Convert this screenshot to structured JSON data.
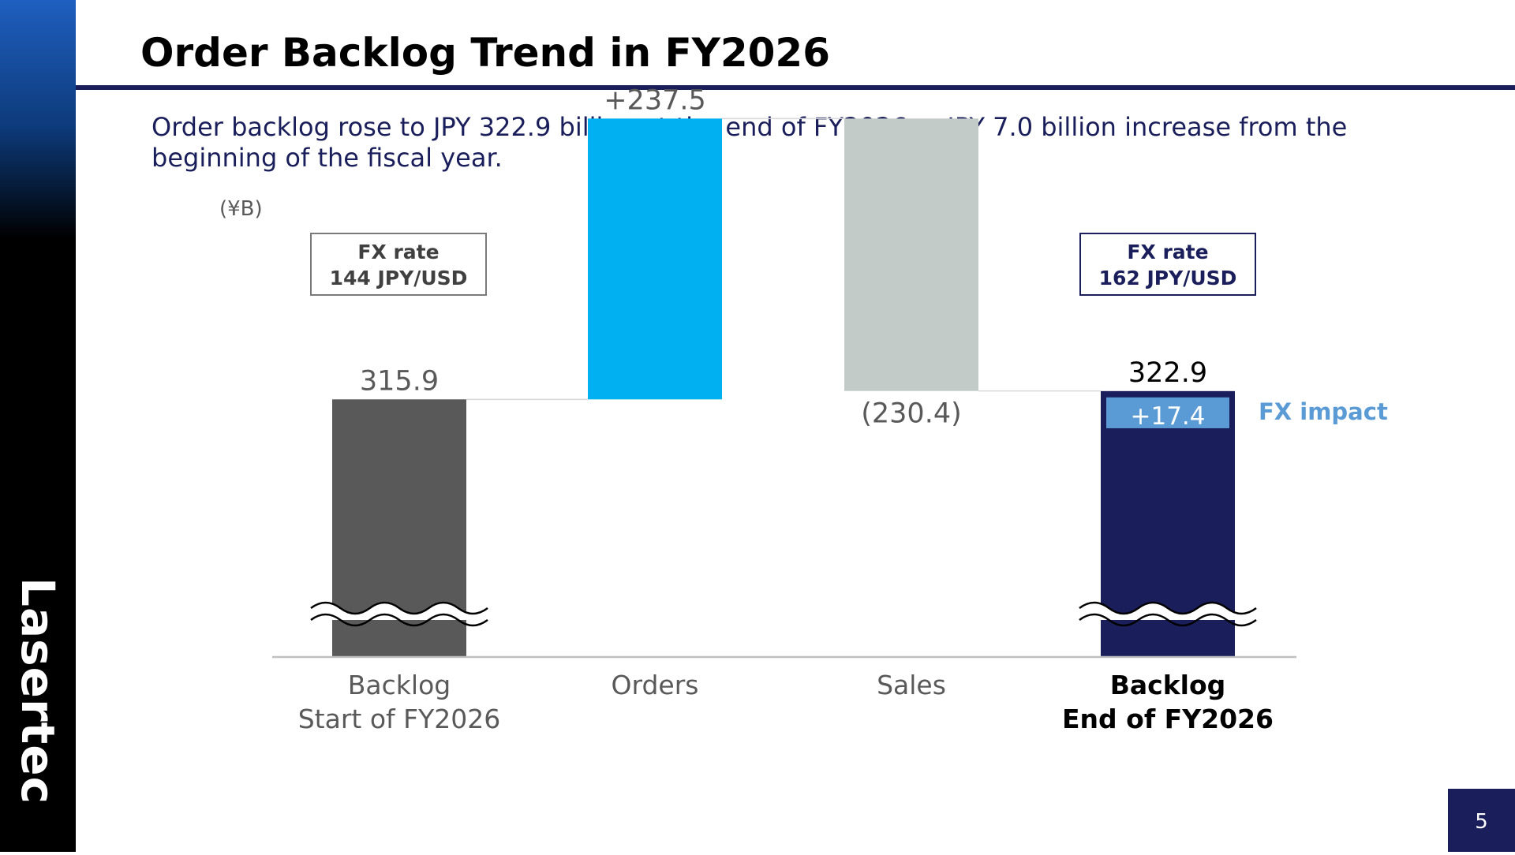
{
  "brand": "Lasertec",
  "title": "Order Backlog Trend in FY2026",
  "subtitle": "Order backlog rose to JPY 322.9 billion at the end of FY2026, a JPY 7.0 billion increase from the beginning of the fiscal year.",
  "fx_start": {
    "label": "FX rate",
    "value": "144 JPY/USD"
  },
  "fx_end": {
    "label": "FX rate",
    "value": "162 JPY/USD"
  },
  "page_number": "5",
  "chart_data": {
    "type": "bar",
    "subtype": "waterfall",
    "unit_label": "(¥B)",
    "axis_break": true,
    "categories": [
      [
        "Backlog",
        "Start of FY2026"
      ],
      [
        "Orders"
      ],
      [
        "Sales"
      ],
      [
        "Backlog",
        "End of FY2026"
      ]
    ],
    "values": [
      315.9,
      237.5,
      -230.4,
      322.9
    ],
    "value_labels": [
      "315.9",
      "+237.5",
      "(230.4)",
      "322.9"
    ],
    "bar_kinds": [
      "total",
      "increase",
      "decrease",
      "total"
    ],
    "colors": [
      "#595959",
      "#00b0f0",
      "#c3cbc9",
      "#1a1f5c"
    ],
    "fx_impact": {
      "value": 17.4,
      "label": "+17.4",
      "legend": "FX impact",
      "color": "#5b9bd5"
    }
  }
}
